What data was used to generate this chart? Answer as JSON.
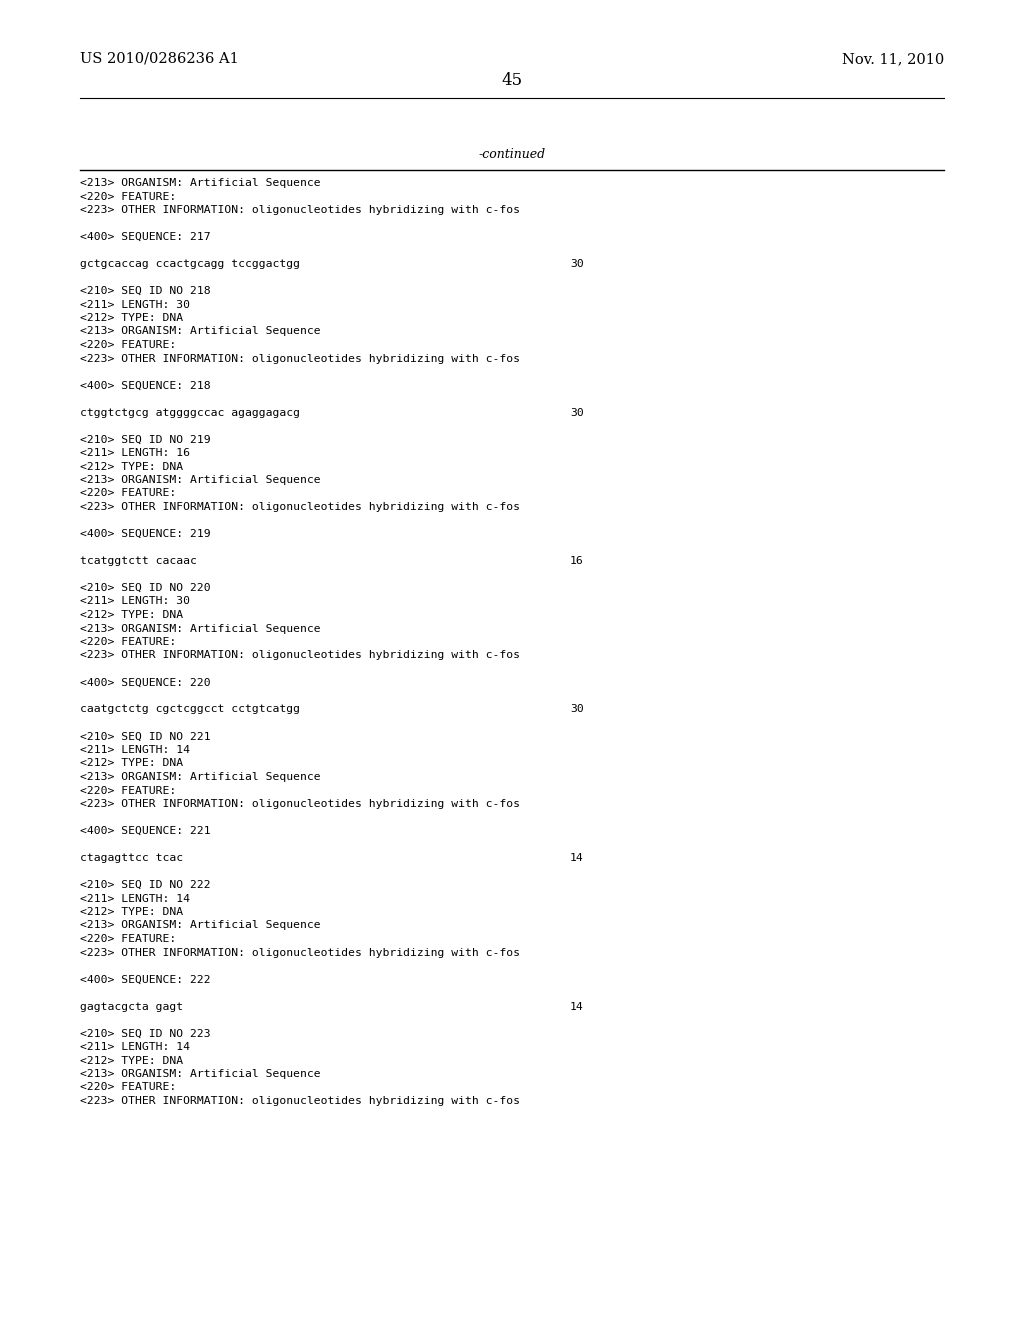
{
  "bg_color": "#ffffff",
  "header_left": "US 2010/0286236 A1",
  "header_right": "Nov. 11, 2010",
  "page_number": "45",
  "continued_label": "-continued",
  "text_color": "#000000",
  "header_font_size": 10.5,
  "page_num_font_size": 12,
  "body_font_size": 8.2,
  "content_blocks": [
    {
      "lines": [
        "<213> ORGANISM: Artificial Sequence",
        "<220> FEATURE:",
        "<223> OTHER INFORMATION: oligonucleotides hybridizing with c-fos",
        "",
        "<400> SEQUENCE: 217",
        ""
      ],
      "seq_line": "gctgcaccag ccactgcagg tccggactgg",
      "seq_num": "30"
    },
    {
      "lines": [
        "",
        "<210> SEQ ID NO 218",
        "<211> LENGTH: 30",
        "<212> TYPE: DNA",
        "<213> ORGANISM: Artificial Sequence",
        "<220> FEATURE:",
        "<223> OTHER INFORMATION: oligonucleotides hybridizing with c-fos",
        "",
        "<400> SEQUENCE: 218",
        ""
      ],
      "seq_line": "ctggtctgcg atggggccac agaggagacg",
      "seq_num": "30"
    },
    {
      "lines": [
        "",
        "<210> SEQ ID NO 219",
        "<211> LENGTH: 16",
        "<212> TYPE: DNA",
        "<213> ORGANISM: Artificial Sequence",
        "<220> FEATURE:",
        "<223> OTHER INFORMATION: oligonucleotides hybridizing with c-fos",
        "",
        "<400> SEQUENCE: 219",
        ""
      ],
      "seq_line": "tcatggtctt cacaac",
      "seq_num": "16"
    },
    {
      "lines": [
        "",
        "<210> SEQ ID NO 220",
        "<211> LENGTH: 30",
        "<212> TYPE: DNA",
        "<213> ORGANISM: Artificial Sequence",
        "<220> FEATURE:",
        "<223> OTHER INFORMATION: oligonucleotides hybridizing with c-fos",
        "",
        "<400> SEQUENCE: 220",
        ""
      ],
      "seq_line": "caatgctctg cgctcggcct cctgtcatgg",
      "seq_num": "30"
    },
    {
      "lines": [
        "",
        "<210> SEQ ID NO 221",
        "<211> LENGTH: 14",
        "<212> TYPE: DNA",
        "<213> ORGANISM: Artificial Sequence",
        "<220> FEATURE:",
        "<223> OTHER INFORMATION: oligonucleotides hybridizing with c-fos",
        "",
        "<400> SEQUENCE: 221",
        ""
      ],
      "seq_line": "ctagagttcc tcac",
      "seq_num": "14"
    },
    {
      "lines": [
        "",
        "<210> SEQ ID NO 222",
        "<211> LENGTH: 14",
        "<212> TYPE: DNA",
        "<213> ORGANISM: Artificial Sequence",
        "<220> FEATURE:",
        "<223> OTHER INFORMATION: oligonucleotides hybridizing with c-fos",
        "",
        "<400> SEQUENCE: 222",
        ""
      ],
      "seq_line": "gagtacgcta gagt",
      "seq_num": "14"
    },
    {
      "lines": [
        "",
        "<210> SEQ ID NO 223",
        "<211> LENGTH: 14",
        "<212> TYPE: DNA",
        "<213> ORGANISM: Artificial Sequence",
        "<220> FEATURE:",
        "<223> OTHER INFORMATION: oligonucleotides hybridizing with c-fos"
      ],
      "seq_line": null,
      "seq_num": null
    }
  ]
}
